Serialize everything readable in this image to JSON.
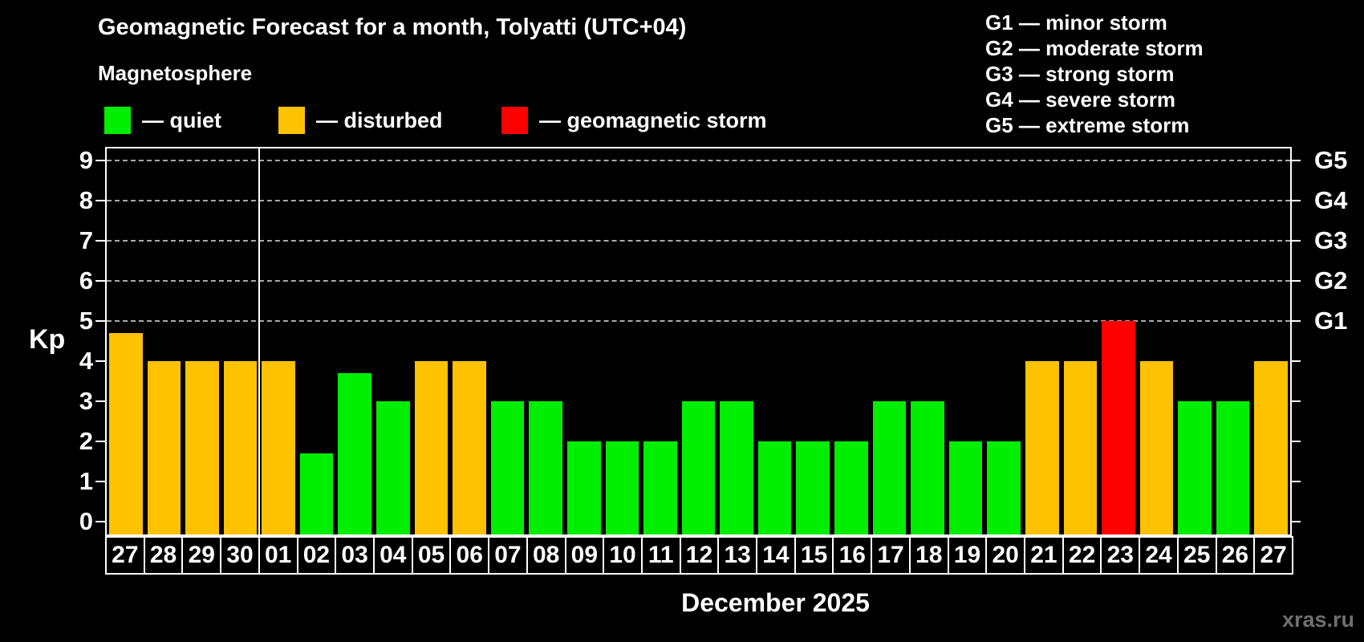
{
  "title": "Geomagnetic Forecast for a month, Tolyatti (UTC+04)",
  "subtitle": "Magnetosphere",
  "legend": {
    "items": [
      {
        "key": "quiet",
        "label": "— quiet",
        "color": "#00ee00"
      },
      {
        "key": "disturbed",
        "label": "— disturbed",
        "color": "#ffc200"
      },
      {
        "key": "storm",
        "label": "— geomagnetic storm",
        "color": "#ff0000"
      }
    ]
  },
  "g_legend": {
    "items": [
      "G1 — minor storm",
      "G2 — moderate storm",
      "G3 — strong storm",
      "G4 — severe storm",
      "G5 — extreme storm"
    ]
  },
  "axis": {
    "kp_label": "Kp",
    "y_ticks": [
      0,
      1,
      2,
      3,
      4,
      5,
      6,
      7,
      8,
      9
    ],
    "grid_levels": [
      5,
      6,
      7,
      8,
      9
    ],
    "g_labels": [
      {
        "level": 5,
        "label": "G1"
      },
      {
        "level": 6,
        "label": "G2"
      },
      {
        "level": 7,
        "label": "G3"
      },
      {
        "level": 8,
        "label": "G4"
      },
      {
        "level": 9,
        "label": "G5"
      }
    ],
    "x_label": "December 2025"
  },
  "watermark": "xras.ru",
  "colors": {
    "quiet": "#00ee00",
    "disturbed": "#ffc200",
    "storm": "#ff0000",
    "grid": "#aaaaaa",
    "frame": "#ffffff",
    "text": "#ffffff",
    "watermark": "#6f6f6f",
    "background": "#000000"
  },
  "chart_data": {
    "type": "bar",
    "title": "Geomagnetic Forecast for a month, Tolyatti (UTC+04)",
    "ylabel": "Kp",
    "ylim": [
      0,
      9
    ],
    "grid": "dashed horizontal at Kp 5-9 only",
    "legend_position": "top",
    "categories": [
      "27",
      "28",
      "29",
      "30",
      "01",
      "02",
      "03",
      "04",
      "05",
      "06",
      "07",
      "08",
      "09",
      "10",
      "11",
      "12",
      "13",
      "14",
      "15",
      "16",
      "17",
      "18",
      "19",
      "20",
      "21",
      "22",
      "23",
      "24",
      "25",
      "26",
      "27"
    ],
    "values": [
      4.7,
      4,
      4,
      4,
      4,
      1.7,
      3.7,
      3,
      4,
      4,
      3,
      3,
      2,
      2,
      2,
      3,
      3,
      2,
      2,
      2,
      3,
      3,
      2,
      2,
      4,
      4,
      5,
      4,
      3,
      3,
      4
    ],
    "statuses": [
      "disturbed",
      "disturbed",
      "disturbed",
      "disturbed",
      "disturbed",
      "quiet",
      "quiet",
      "quiet",
      "disturbed",
      "disturbed",
      "quiet",
      "quiet",
      "quiet",
      "quiet",
      "quiet",
      "quiet",
      "quiet",
      "quiet",
      "quiet",
      "quiet",
      "quiet",
      "quiet",
      "quiet",
      "quiet",
      "disturbed",
      "disturbed",
      "storm",
      "disturbed",
      "quiet",
      "quiet",
      "disturbed"
    ],
    "month_separator_index": 4,
    "x_axis_title": "December 2025"
  }
}
